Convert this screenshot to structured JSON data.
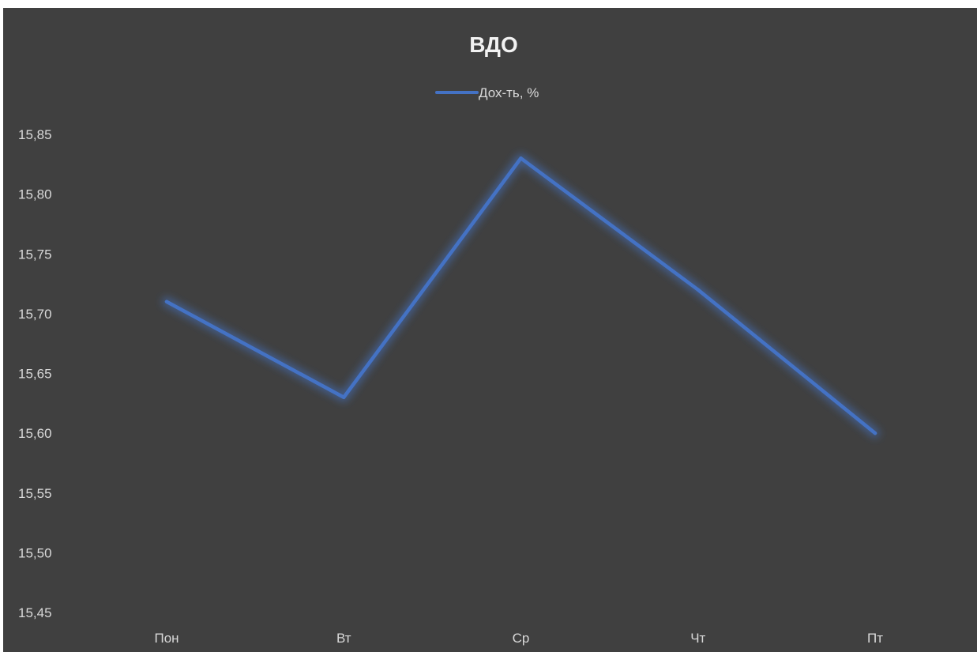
{
  "chart_data": {
    "type": "line",
    "title": "ВДО",
    "xlabel": "",
    "ylabel": "",
    "categories": [
      "Пон",
      "Вт",
      "Ср",
      "Чт",
      "Пт"
    ],
    "series": [
      {
        "name": "Дох-ть, %",
        "values": [
          15.71,
          15.63,
          15.83,
          15.72,
          15.6
        ],
        "color": "#4472c4"
      }
    ],
    "ylim": [
      15.45,
      15.85
    ],
    "yticks": [
      "15,45",
      "15,50",
      "15,55",
      "15,60",
      "15,65",
      "15,70",
      "15,75",
      "15,80",
      "15,85"
    ],
    "yticks_values": [
      15.45,
      15.5,
      15.55,
      15.6,
      15.65,
      15.7,
      15.75,
      15.8,
      15.85
    ],
    "grid": false,
    "legend_position": "top-center",
    "background_color": "#404040"
  }
}
